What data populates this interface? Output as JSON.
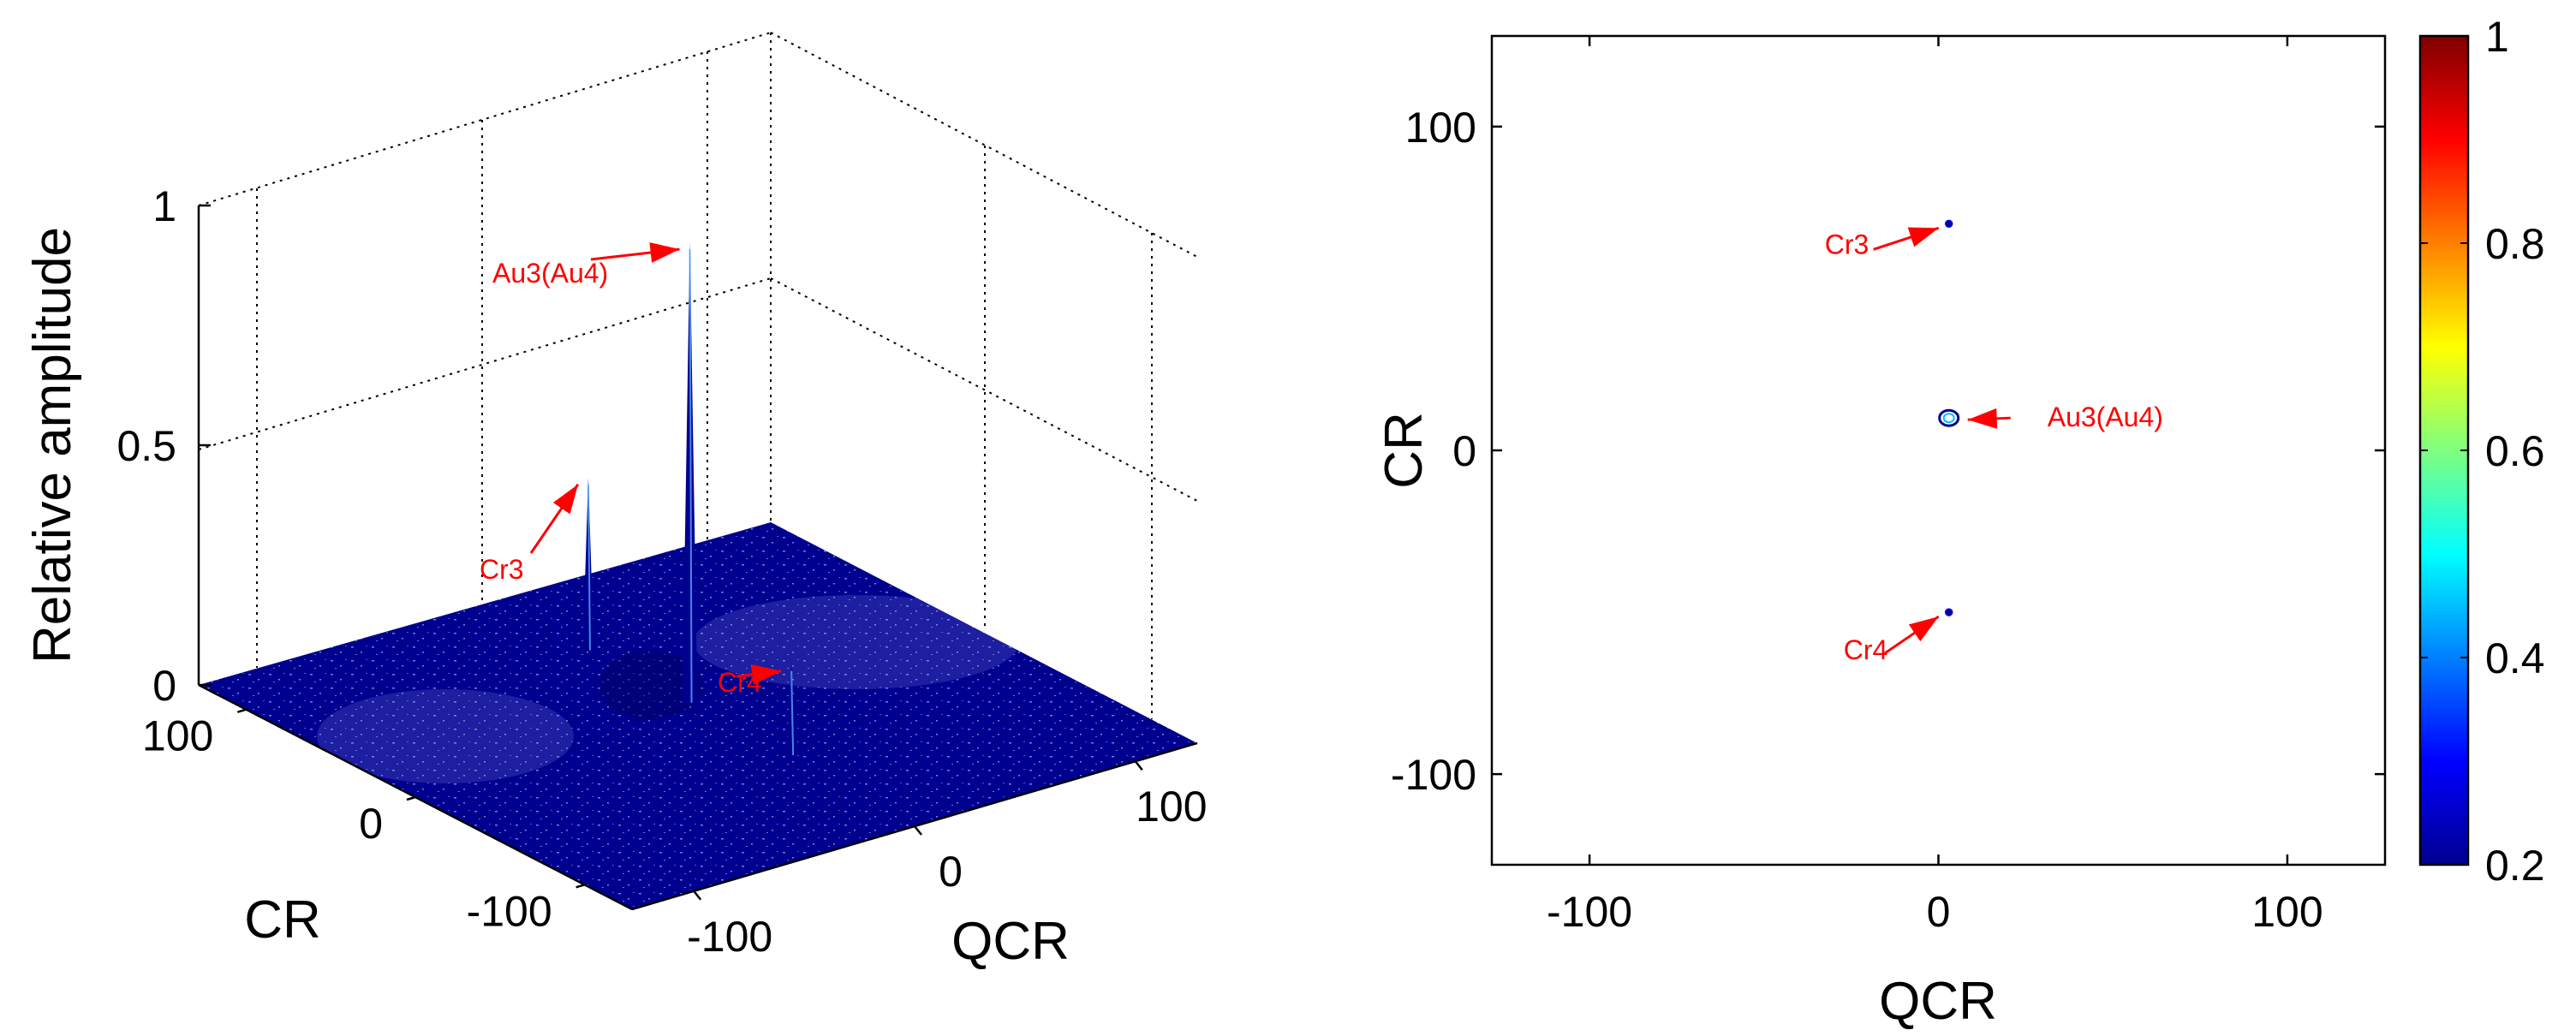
{
  "chart_data": [
    {
      "type": "surface3d",
      "title": "",
      "xlabel": "QCR",
      "ylabel": "CR",
      "zlabel": "Relative amplitude",
      "xlim": [
        -128,
        128
      ],
      "ylim": [
        -128,
        128
      ],
      "zlim": [
        0,
        1
      ],
      "x_ticks": [
        "-100",
        "0",
        "100"
      ],
      "y_ticks": [
        "100",
        "0",
        "-100"
      ],
      "z_ticks": [
        "0",
        "0.5",
        "1"
      ],
      "grid": true,
      "surface_color": "#00008F",
      "annotation_color": "#FF0000",
      "peaks": [
        {
          "label": "Au3(Au4)",
          "x": 4,
          "y": 10,
          "z": 0.96
        },
        {
          "label": "Cr3",
          "x": 4,
          "y": 70,
          "z": 0.36
        },
        {
          "label": "Cr4",
          "x": 4,
          "y": -50,
          "z": 0.19
        }
      ]
    },
    {
      "type": "contour",
      "title": "",
      "xlabel": "QCR",
      "ylabel": "CR",
      "xlim": [
        -128,
        128
      ],
      "ylim": [
        -128,
        128
      ],
      "x_ticks": [
        "-100",
        "0",
        "100"
      ],
      "y_ticks": [
        "100",
        "0",
        "-100"
      ],
      "grid": false,
      "colorbar": {
        "colormap": "jet",
        "range": [
          0.2,
          1
        ],
        "ticks": [
          "1",
          "0.8",
          "0.6",
          "0.4",
          "0.2"
        ]
      },
      "annotation_color": "#FF0000",
      "peaks": [
        {
          "label": "Cr3",
          "x": 3,
          "y": 70
        },
        {
          "label": "Au3(Au4)",
          "x": 3,
          "y": 10
        },
        {
          "label": "Cr4",
          "x": 3,
          "y": -50
        }
      ]
    }
  ]
}
